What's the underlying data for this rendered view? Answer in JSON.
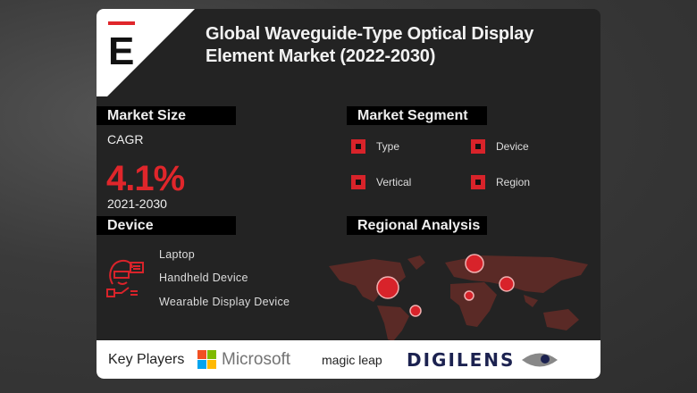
{
  "title": "Global Waveguide-Type Optical Display Element Market (2022-2030)",
  "logo": {
    "letter": "E",
    "accent": "#e0262b"
  },
  "market_size": {
    "heading": "Market Size",
    "label": "CAGR",
    "value": "4.1%",
    "period": "2021-2030"
  },
  "market_segment": {
    "heading": "Market Segment",
    "items": [
      "Type",
      "Device",
      "Vertical",
      "Region"
    ]
  },
  "device": {
    "heading": "Device",
    "icon": "person-with-vr-glasses-icon",
    "items": [
      "Laptop",
      "Handheld Device",
      "Wearable Display Device"
    ]
  },
  "regional": {
    "heading": "Regional Analysis"
  },
  "key_players": {
    "label": "Key Players",
    "companies": [
      "Microsoft",
      "magic leap",
      "DIGILENS"
    ]
  },
  "colors": {
    "accent": "#e0262b",
    "card": "#232323",
    "map": "#5a2a26"
  }
}
